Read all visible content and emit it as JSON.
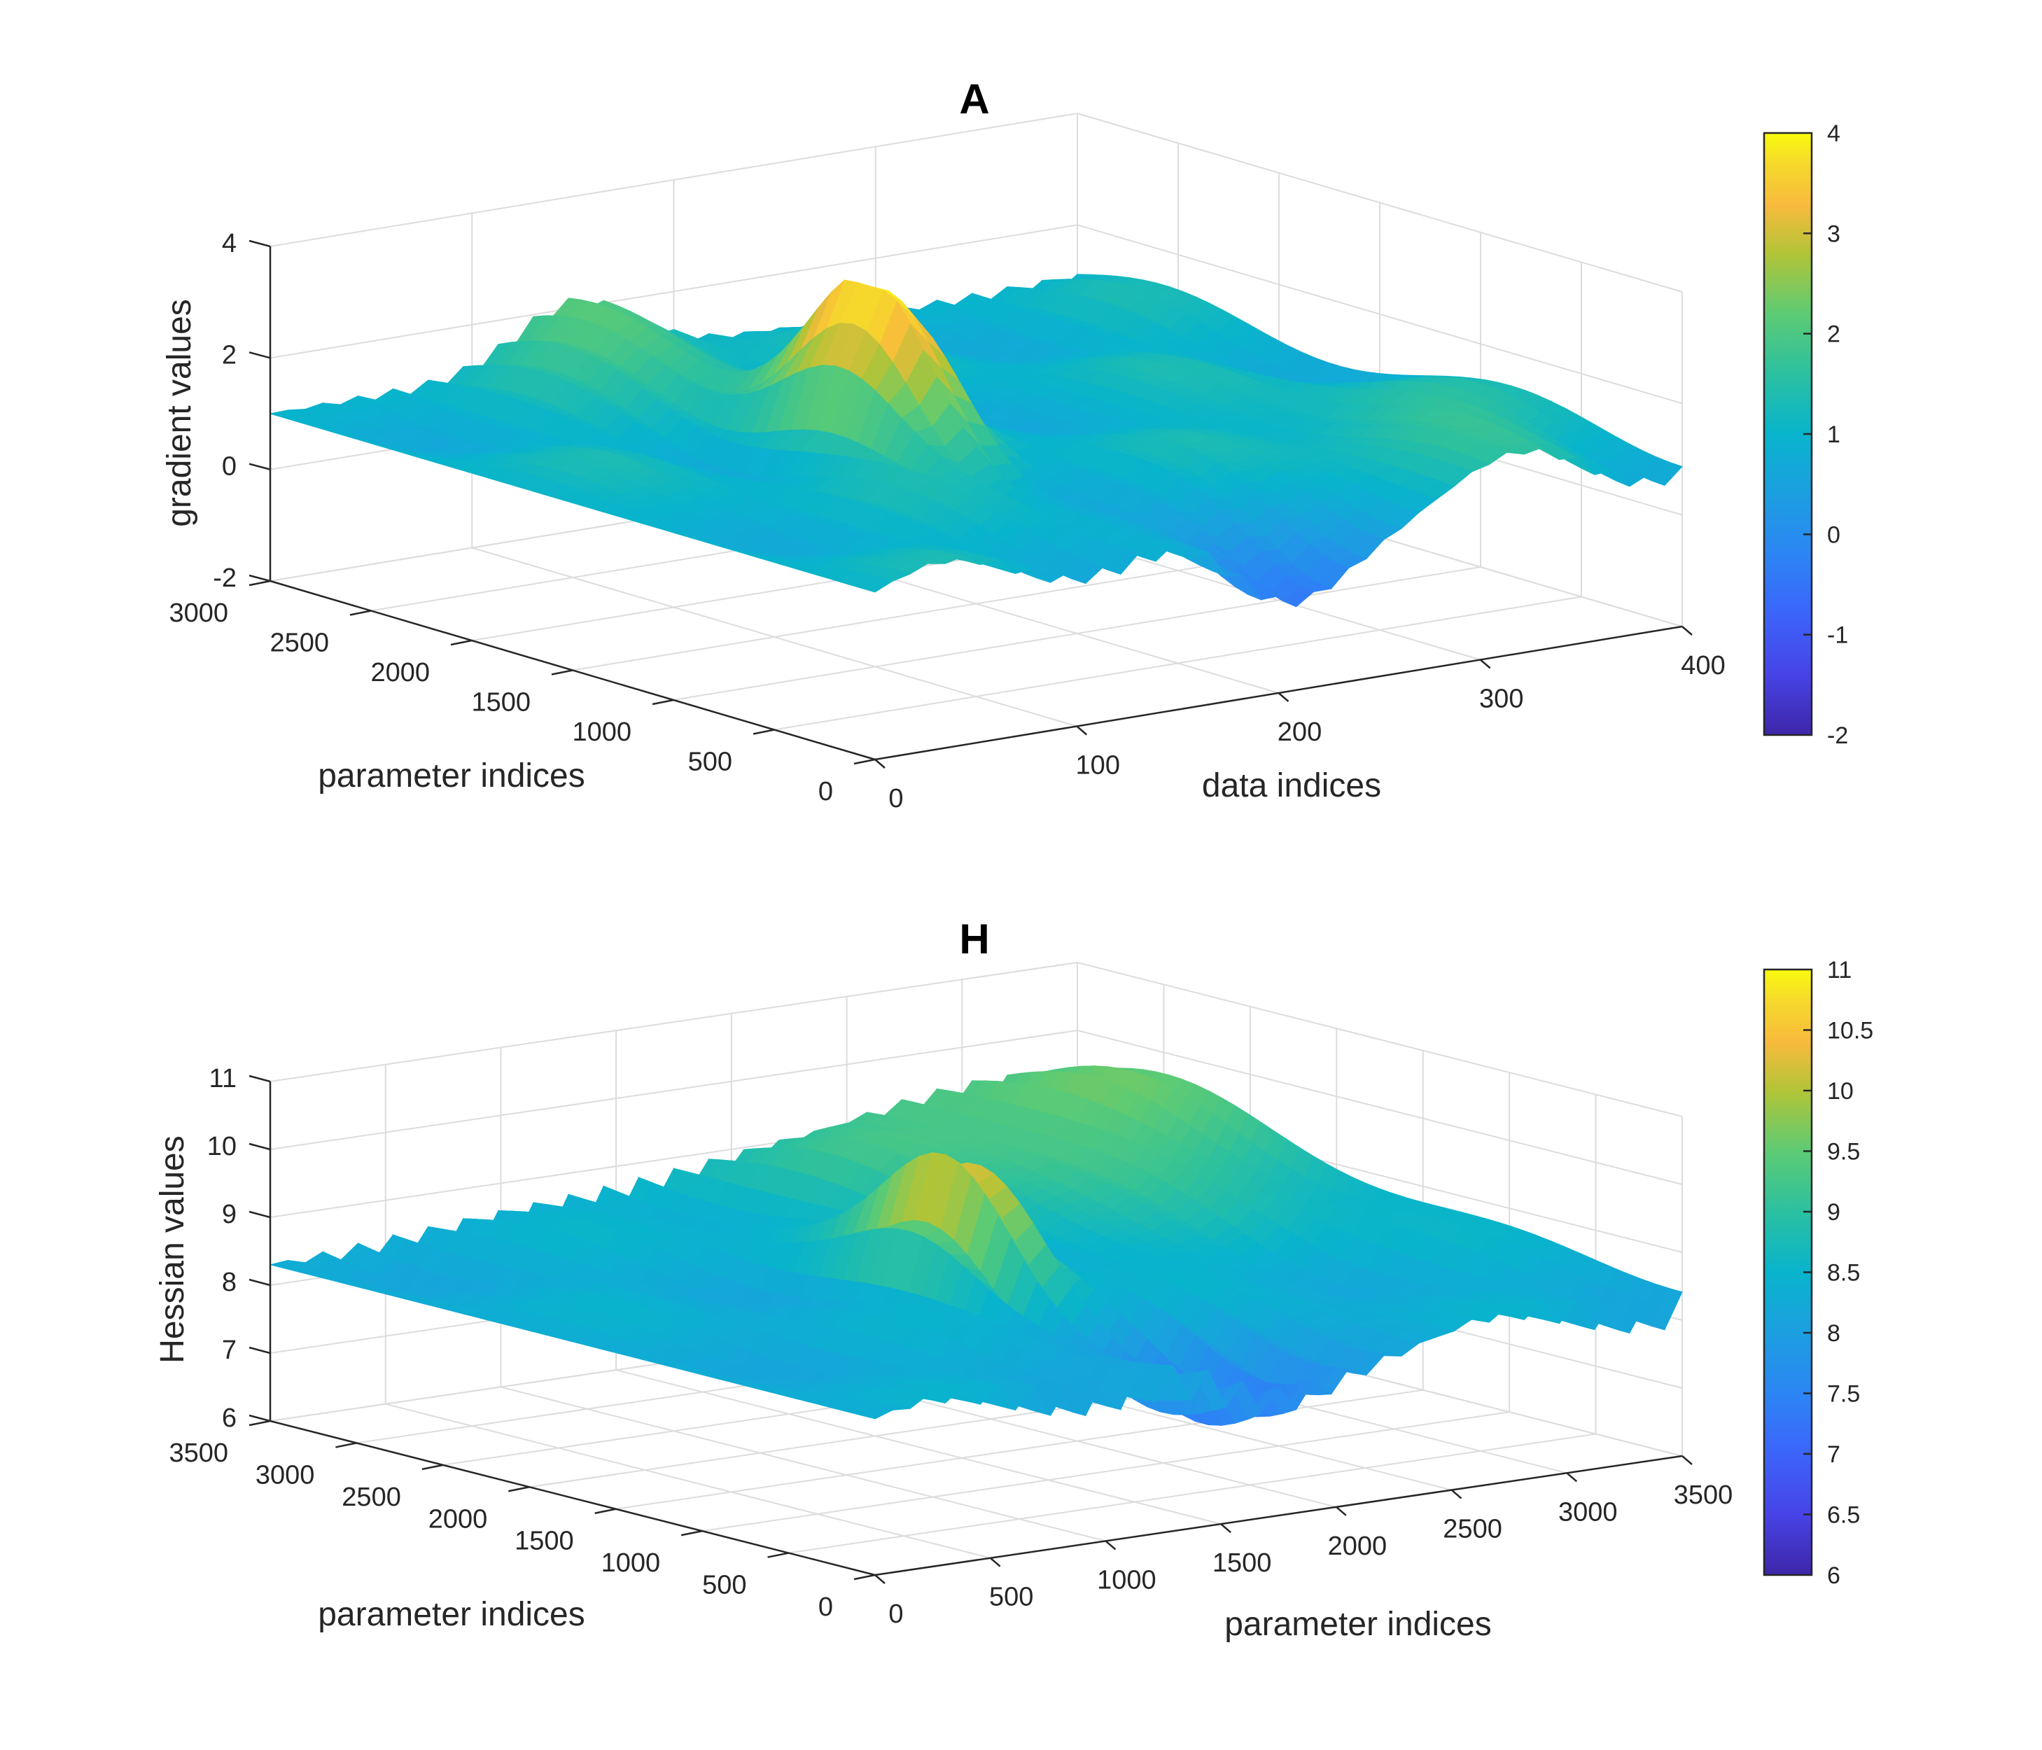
{
  "chart_data": [
    {
      "type": "surface3d",
      "title": "A",
      "xlabel": "data indices",
      "ylabel": "parameter indices",
      "zlabel": "gradient values",
      "xlim": [
        0,
        400
      ],
      "ylim": [
        0,
        3000
      ],
      "zlim": [
        -2,
        4
      ],
      "xticks": [
        "0",
        "100",
        "200",
        "300",
        "400"
      ],
      "yticks": [
        "0",
        "500",
        "1000",
        "1500",
        "2000",
        "2500",
        "3000"
      ],
      "zticks": [
        "-2",
        "0",
        "2",
        "4"
      ],
      "colorbar": {
        "range": [
          -2,
          4
        ],
        "ticks": [
          "4",
          "3",
          "2",
          "1",
          "0",
          "-1",
          "-2"
        ]
      },
      "grid": true,
      "colormap": "parula",
      "surface_description": "undulating surface mostly between 0 and 2.5 with a sharp peak near data index 150, parameter index 1500 reaching about 4; dip to about -0.5 near data index 200, parameter index 0",
      "base_level": 1.0,
      "features": [
        {
          "x": 150,
          "y": 1500,
          "z": 4.0,
          "kind": "peak"
        },
        {
          "x": 200,
          "y": 0,
          "z": -0.5,
          "kind": "valley"
        },
        {
          "x": 150,
          "y": 2800,
          "z": 2.2,
          "kind": "ridge"
        },
        {
          "x": 330,
          "y": 600,
          "z": 1.8,
          "kind": "ridge"
        }
      ]
    },
    {
      "type": "surface3d",
      "title": "H",
      "xlabel": "parameter indices",
      "ylabel": "parameter indices",
      "zlabel": "Hessian values",
      "xlim": [
        0,
        3500
      ],
      "ylim": [
        0,
        3500
      ],
      "zlim": [
        6,
        11
      ],
      "xticks": [
        "0",
        "500",
        "1000",
        "1500",
        "2000",
        "2500",
        "3000",
        "3500"
      ],
      "yticks": [
        "0",
        "500",
        "1000",
        "1500",
        "2000",
        "2500",
        "3000",
        "3500"
      ],
      "zticks": [
        "6",
        "7",
        "8",
        "9",
        "10",
        "11"
      ],
      "colorbar": {
        "range": [
          6,
          11
        ],
        "ticks": [
          "11",
          "10.5",
          "10",
          "9.5",
          "9",
          "8.5",
          "8",
          "7.5",
          "7",
          "6.5",
          "6"
        ]
      },
      "grid": true,
      "colormap": "parula",
      "surface_description": "oscillating dome-shaped surface around 8-9.5 with a central peak near 10.3 and a dip toward 7.3 at the front",
      "base_level": 8.3,
      "features": [
        {
          "x": 1500,
          "y": 1500,
          "z": 10.3,
          "kind": "peak"
        },
        {
          "x": 1700,
          "y": 300,
          "z": 7.3,
          "kind": "valley"
        },
        {
          "x": 3000,
          "y": 3000,
          "z": 9.5,
          "kind": "dome"
        }
      ]
    }
  ]
}
